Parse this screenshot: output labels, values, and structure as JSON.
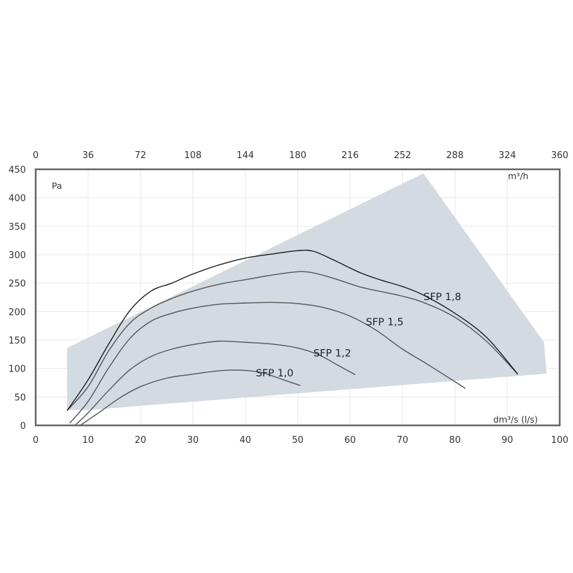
{
  "chart_data": {
    "type": "line",
    "ylabel": "Pa",
    "xlabel": "dm³/s (l/s)",
    "x2label": "m³/h",
    "xlim": [
      0,
      100
    ],
    "ylim": [
      0,
      450
    ],
    "x2lim": [
      0,
      360
    ],
    "x_ticks": [
      0,
      10,
      20,
      30,
      40,
      50,
      60,
      70,
      80,
      90,
      100
    ],
    "y_ticks": [
      0,
      50,
      100,
      150,
      200,
      250,
      300,
      350,
      400,
      450
    ],
    "x2_ticks": [
      0,
      36,
      72,
      108,
      144,
      180,
      216,
      252,
      288,
      324,
      360
    ],
    "grid": true,
    "colors": {
      "area": "#d3dae2",
      "frame": "#666666",
      "curve": "#555555",
      "max_curve": "#1a1a1a"
    },
    "operating_area": [
      [
        6,
        136
      ],
      [
        74,
        443
      ],
      [
        97,
        146
      ],
      [
        97.5,
        91
      ],
      [
        10,
        27
      ],
      [
        6,
        27
      ]
    ],
    "series": [
      {
        "name": "SFP 1,0",
        "label_at": [
          42,
          86
        ],
        "points": [
          [
            8.5,
            0
          ],
          [
            12,
            22
          ],
          [
            16,
            48
          ],
          [
            20,
            68
          ],
          [
            25,
            83
          ],
          [
            30,
            90
          ],
          [
            35,
            96
          ],
          [
            39,
            97
          ],
          [
            43,
            93
          ],
          [
            47,
            81
          ],
          [
            50.5,
            70
          ]
        ]
      },
      {
        "name": "SFP 1,2",
        "label_at": [
          53,
          121
        ],
        "points": [
          [
            7.5,
            0
          ],
          [
            10,
            22
          ],
          [
            14,
            62
          ],
          [
            18,
            98
          ],
          [
            22,
            121
          ],
          [
            26,
            134
          ],
          [
            30,
            142
          ],
          [
            35,
            148
          ],
          [
            40,
            146
          ],
          [
            45,
            143
          ],
          [
            50,
            136
          ],
          [
            54,
            124
          ],
          [
            58,
            104
          ],
          [
            61,
            89
          ]
        ]
      },
      {
        "name": "SFP 1,5",
        "label_at": [
          63,
          176
        ],
        "points": [
          [
            6.5,
            4
          ],
          [
            10,
            42
          ],
          [
            14,
            102
          ],
          [
            18,
            153
          ],
          [
            22,
            183
          ],
          [
            26,
            197
          ],
          [
            30,
            206
          ],
          [
            35,
            213
          ],
          [
            40,
            215
          ],
          [
            45,
            216
          ],
          [
            50,
            214
          ],
          [
            55,
            207
          ],
          [
            60,
            192
          ],
          [
            65,
            167
          ],
          [
            70,
            134
          ],
          [
            75,
            106
          ],
          [
            82,
            65
          ]
        ]
      },
      {
        "name": "SFP 1,8",
        "label_at": [
          74,
          220
        ],
        "points": [
          [
            6,
            26
          ],
          [
            10,
            68
          ],
          [
            14,
            132
          ],
          [
            18,
            180
          ],
          [
            22,
            206
          ],
          [
            26,
            223
          ],
          [
            30,
            236
          ],
          [
            35,
            248
          ],
          [
            40,
            256
          ],
          [
            45,
            264
          ],
          [
            50,
            270
          ],
          [
            53,
            268
          ],
          [
            57,
            258
          ],
          [
            62,
            243
          ],
          [
            66,
            235
          ],
          [
            70,
            227
          ],
          [
            74,
            216
          ],
          [
            80,
            190
          ],
          [
            86,
            148
          ],
          [
            92,
            90
          ]
        ]
      },
      {
        "name": "",
        "role": "max",
        "points": [
          [
            6,
            26
          ],
          [
            10,
            80
          ],
          [
            14,
            144
          ],
          [
            18,
            202
          ],
          [
            22,
            236
          ],
          [
            26,
            250
          ],
          [
            30,
            266
          ],
          [
            35,
            282
          ],
          [
            40,
            294
          ],
          [
            45,
            301
          ],
          [
            50,
            307
          ],
          [
            53,
            306
          ],
          [
            57,
            290
          ],
          [
            62,
            268
          ],
          [
            66,
            255
          ],
          [
            70,
            244
          ],
          [
            74,
            229
          ],
          [
            80,
            197
          ],
          [
            86,
            155
          ],
          [
            92,
            90
          ]
        ]
      }
    ]
  }
}
